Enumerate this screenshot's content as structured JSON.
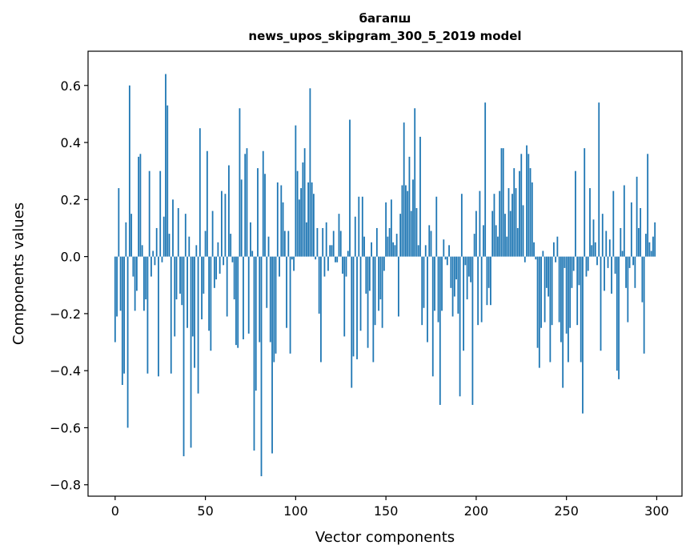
{
  "chart_data": {
    "type": "bar",
    "title": "багапш",
    "subtitle": "news_upos_skipgram_300_5_2019 model",
    "xlabel": "Vector components",
    "ylabel": "Components values",
    "xlim": [
      -15,
      314
    ],
    "ylim": [
      -0.84,
      0.72
    ],
    "xticks": [
      0,
      50,
      100,
      150,
      200,
      250,
      300
    ],
    "yticks": [
      -0.8,
      -0.6,
      -0.4,
      -0.2,
      0.0,
      0.2,
      0.4,
      0.6
    ],
    "ytick_labels": [
      "−0.8",
      "−0.6",
      "−0.4",
      "−0.2",
      "0.0",
      "0.2",
      "0.4",
      "0.6"
    ],
    "bar_color": "#1f77b4",
    "values": [
      -0.3,
      -0.21,
      0.24,
      -0.19,
      -0.45,
      -0.41,
      0.12,
      -0.6,
      0.6,
      0.15,
      -0.07,
      -0.19,
      -0.12,
      0.35,
      0.36,
      0.04,
      -0.19,
      -0.15,
      -0.41,
      0.3,
      -0.07,
      0.02,
      -0.03,
      0.1,
      -0.42,
      0.3,
      -0.02,
      0.14,
      0.64,
      0.53,
      0.08,
      -0.41,
      0.2,
      -0.28,
      -0.15,
      0.17,
      -0.13,
      -0.17,
      -0.7,
      0.15,
      -0.25,
      0.07,
      -0.67,
      -0.28,
      -0.39,
      0.04,
      -0.48,
      0.45,
      -0.22,
      -0.13,
      0.09,
      0.37,
      -0.26,
      -0.33,
      0.16,
      -0.11,
      -0.08,
      0.05,
      -0.06,
      0.23,
      -0.03,
      0.22,
      -0.21,
      0.32,
      0.08,
      -0.02,
      -0.15,
      -0.31,
      -0.32,
      0.52,
      0.27,
      -0.29,
      0.36,
      0.38,
      -0.27,
      0.12,
      0.02,
      -0.68,
      -0.47,
      0.31,
      -0.3,
      -0.77,
      0.37,
      0.29,
      -0.18,
      0.07,
      -0.3,
      -0.69,
      -0.37,
      -0.34,
      0.26,
      -0.07,
      0.25,
      0.19,
      0.09,
      -0.25,
      0.09,
      -0.34,
      -0.01,
      -0.05,
      0.46,
      0.3,
      0.2,
      0.24,
      0.33,
      0.38,
      0.12,
      0.26,
      0.59,
      0.26,
      0.22,
      -0.01,
      0.1,
      -0.2,
      -0.37,
      0.1,
      -0.07,
      0.12,
      -0.05,
      0.04,
      0.04,
      0.09,
      -0.02,
      -0.02,
      0.15,
      0.09,
      -0.06,
      -0.28,
      -0.07,
      0.02,
      0.48,
      -0.46,
      -0.35,
      0.14,
      -0.36,
      0.21,
      -0.26,
      0.21,
      0.07,
      -0.13,
      -0.32,
      -0.12,
      0.05,
      -0.37,
      -0.24,
      0.1,
      -0.19,
      -0.15,
      -0.25,
      -0.05,
      0.19,
      0.07,
      0.1,
      0.2,
      0.05,
      0.04,
      0.08,
      -0.21,
      0.15,
      0.25,
      0.47,
      0.25,
      0.23,
      0.35,
      0.16,
      0.27,
      0.52,
      0.17,
      0.04,
      0.42,
      -0.24,
      -0.18,
      0.04,
      -0.3,
      0.11,
      0.09,
      -0.42,
      -0.19,
      0.21,
      -0.23,
      -0.52,
      -0.19,
      0.06,
      -0.01,
      -0.03,
      0.04,
      -0.11,
      -0.21,
      -0.14,
      -0.08,
      -0.2,
      -0.49,
      0.22,
      -0.33,
      -0.03,
      -0.15,
      -0.07,
      -0.09,
      -0.52,
      0.08,
      0.16,
      -0.24,
      0.23,
      -0.23,
      0.11,
      0.54,
      -0.17,
      -0.11,
      -0.17,
      0.16,
      0.22,
      0.11,
      0.07,
      0.23,
      0.38,
      0.38,
      0.15,
      0.07,
      0.24,
      0.16,
      0.22,
      0.31,
      0.24,
      0.1,
      0.3,
      0.36,
      0.18,
      -0.02,
      0.39,
      0.36,
      0.31,
      0.26,
      0.05,
      -0.01,
      -0.32,
      -0.39,
      -0.25,
      0.02,
      -0.23,
      -0.11,
      -0.14,
      -0.37,
      -0.24,
      0.05,
      -0.02,
      0.07,
      -0.23,
      -0.3,
      -0.46,
      -0.04,
      -0.27,
      -0.37,
      -0.25,
      -0.11,
      -0.05,
      0.3,
      -0.24,
      -0.1,
      -0.37,
      -0.55,
      0.38,
      -0.07,
      -0.05,
      0.24,
      0.04,
      0.13,
      0.05,
      -0.03,
      0.54,
      -0.33,
      0.15,
      -0.12,
      0.09,
      -0.04,
      0.06,
      -0.13,
      0.23,
      -0.06,
      -0.4,
      -0.43,
      0.1,
      0.02,
      0.25,
      -0.11,
      -0.23,
      -0.04,
      0.19,
      -0.03,
      -0.11,
      0.28,
      0.1,
      0.17,
      -0.16,
      -0.34,
      0.08,
      0.36,
      0.05,
      0.02,
      0.07,
      0.12
    ]
  }
}
